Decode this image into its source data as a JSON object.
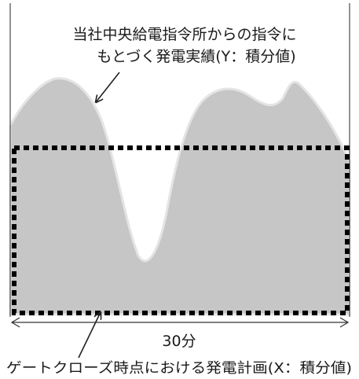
{
  "labels": {
    "actual_line1": "当社中央給電指令所からの指令に",
    "actual_line2": "もとづく発電実績(Y：積分値)",
    "duration": "30分",
    "plan": "ゲートクローズ時点における発電計画(X：積分値)"
  },
  "colors": {
    "curve_fill": "#c6c6c6",
    "curve_outline": "#e4e4e4",
    "plan_border": "#000000",
    "axis": "#4a4a4a"
  }
}
